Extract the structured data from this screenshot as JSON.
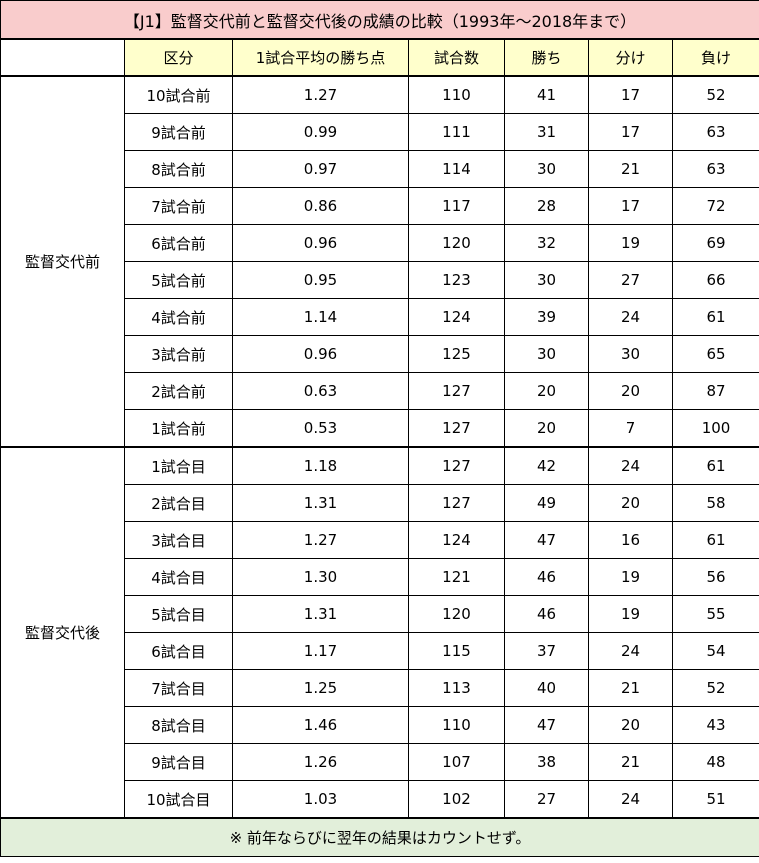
{
  "title": "【J1】監督交代前と監督交代後の成績の比較（1993年～2018年まで）",
  "headers": [
    "",
    "区分",
    "1試合平均の勝ち点",
    "試合数",
    "勝ち",
    "分け",
    "負け"
  ],
  "colors": {
    "title_bg": "#F9CCCC",
    "header_bg": "#FFFFCC",
    "footer_bg": "#E2EFDA"
  },
  "groups": [
    {
      "label": "監督交代前",
      "rows": [
        [
          "10試合前",
          "1.27",
          "110",
          "41",
          "17",
          "52"
        ],
        [
          "9試合前",
          "0.99",
          "111",
          "31",
          "17",
          "63"
        ],
        [
          "8試合前",
          "0.97",
          "114",
          "30",
          "21",
          "63"
        ],
        [
          "7試合前",
          "0.86",
          "117",
          "28",
          "17",
          "72"
        ],
        [
          "6試合前",
          "0.96",
          "120",
          "32",
          "19",
          "69"
        ],
        [
          "5試合前",
          "0.95",
          "123",
          "30",
          "27",
          "66"
        ],
        [
          "4試合前",
          "1.14",
          "124",
          "39",
          "24",
          "61"
        ],
        [
          "3試合前",
          "0.96",
          "125",
          "30",
          "30",
          "65"
        ],
        [
          "2試合前",
          "0.63",
          "127",
          "20",
          "20",
          "87"
        ],
        [
          "1試合前",
          "0.53",
          "127",
          "20",
          "7",
          "100"
        ]
      ]
    },
    {
      "label": "監督交代後",
      "rows": [
        [
          "1試合目",
          "1.18",
          "127",
          "42",
          "24",
          "61"
        ],
        [
          "2試合目",
          "1.31",
          "127",
          "49",
          "20",
          "58"
        ],
        [
          "3試合目",
          "1.27",
          "124",
          "47",
          "16",
          "61"
        ],
        [
          "4試合目",
          "1.30",
          "121",
          "46",
          "19",
          "56"
        ],
        [
          "5試合目",
          "1.31",
          "120",
          "46",
          "19",
          "55"
        ],
        [
          "6試合目",
          "1.17",
          "115",
          "37",
          "24",
          "54"
        ],
        [
          "7試合目",
          "1.25",
          "113",
          "40",
          "21",
          "52"
        ],
        [
          "8試合目",
          "1.46",
          "110",
          "47",
          "20",
          "43"
        ],
        [
          "9試合目",
          "1.26",
          "107",
          "38",
          "21",
          "48"
        ],
        [
          "10試合目",
          "1.03",
          "102",
          "27",
          "24",
          "51"
        ]
      ]
    }
  ],
  "footer": "※ 前年ならびに翌年の結果はカウントせず。"
}
